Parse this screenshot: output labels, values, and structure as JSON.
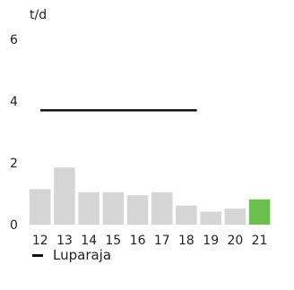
{
  "chart_data": {
    "type": "bar",
    "unit_label": "t/d",
    "categories": [
      "12",
      "13",
      "14",
      "15",
      "16",
      "17",
      "18",
      "19",
      "20",
      "21"
    ],
    "values": [
      1.15,
      1.85,
      1.05,
      1.05,
      0.95,
      1.05,
      0.62,
      0.42,
      0.52,
      0.82
    ],
    "bar_color": "#d5d5d5",
    "highlight_index": 9,
    "highlight_color": "#6cbf4f",
    "reference_line": {
      "name": "Luparaja",
      "value": 3.7,
      "from_category": "12",
      "to_category": "18",
      "color": "#111111"
    },
    "y_ticks": [
      0,
      2,
      4,
      6
    ],
    "ylim": [
      0,
      6.6
    ],
    "grid": false,
    "legend_position": "bottom-left"
  }
}
